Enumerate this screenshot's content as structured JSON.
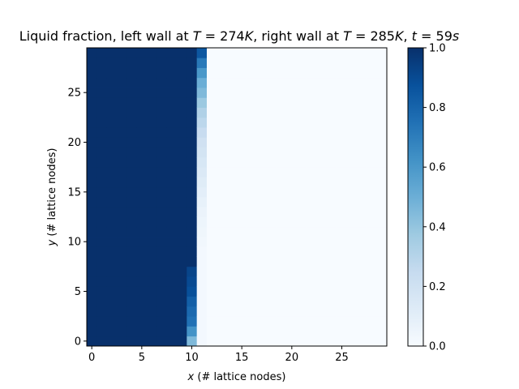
{
  "chart_data": {
    "type": "heatmap",
    "title_parts": [
      "Liquid fraction, left wall at ",
      "T",
      " = 274",
      "K",
      ", right wall at ",
      "T",
      " = 285",
      "K",
      ", ",
      "t",
      " = 59",
      "s"
    ],
    "xlabel_var": "x",
    "xlabel_rest": " (# lattice nodes)",
    "ylabel_var": "y",
    "ylabel_rest": " (# lattice nodes)",
    "x_ticks": [
      "0",
      "5",
      "10",
      "15",
      "20",
      "25"
    ],
    "y_ticks": [
      "0",
      "5",
      "10",
      "15",
      "20",
      "25"
    ],
    "colorbar_ticks": [
      "0.0",
      "0.2",
      "0.4",
      "0.6",
      "0.8",
      "1.0"
    ],
    "colormap": "Blues",
    "colormap_stops": [
      "#f7fbff",
      "#deebf7",
      "#c6dbef",
      "#9ecae1",
      "#6baed6",
      "#4292c6",
      "#2171b5",
      "#08519c",
      "#08306b"
    ],
    "grid": false,
    "nx": 30,
    "ny": 30,
    "xlim": [
      -0.5,
      29.5
    ],
    "ylim": [
      -0.5,
      29.5
    ],
    "clim": [
      0,
      1
    ],
    "background_value": 0.0,
    "solid_block": {
      "x_from": 0,
      "x_to": 9,
      "y_from": 0,
      "y_to": 29,
      "value": 1.0
    },
    "column_10": [
      0.45,
      0.62,
      0.75,
      0.78,
      0.82,
      0.88,
      0.9,
      0.92,
      1,
      1,
      1,
      1,
      1,
      1,
      1,
      1,
      1,
      1,
      1,
      1,
      1,
      1,
      1,
      1,
      1,
      1,
      1,
      1,
      1,
      1
    ],
    "column_11": [
      0.02,
      0.02,
      0.02,
      0.02,
      0.02,
      0.02,
      0.02,
      0.02,
      0.02,
      0.02,
      0.03,
      0.04,
      0.05,
      0.06,
      0.08,
      0.1,
      0.12,
      0.14,
      0.16,
      0.18,
      0.2,
      0.24,
      0.28,
      0.32,
      0.38,
      0.45,
      0.5,
      0.6,
      0.72,
      0.85
    ]
  }
}
